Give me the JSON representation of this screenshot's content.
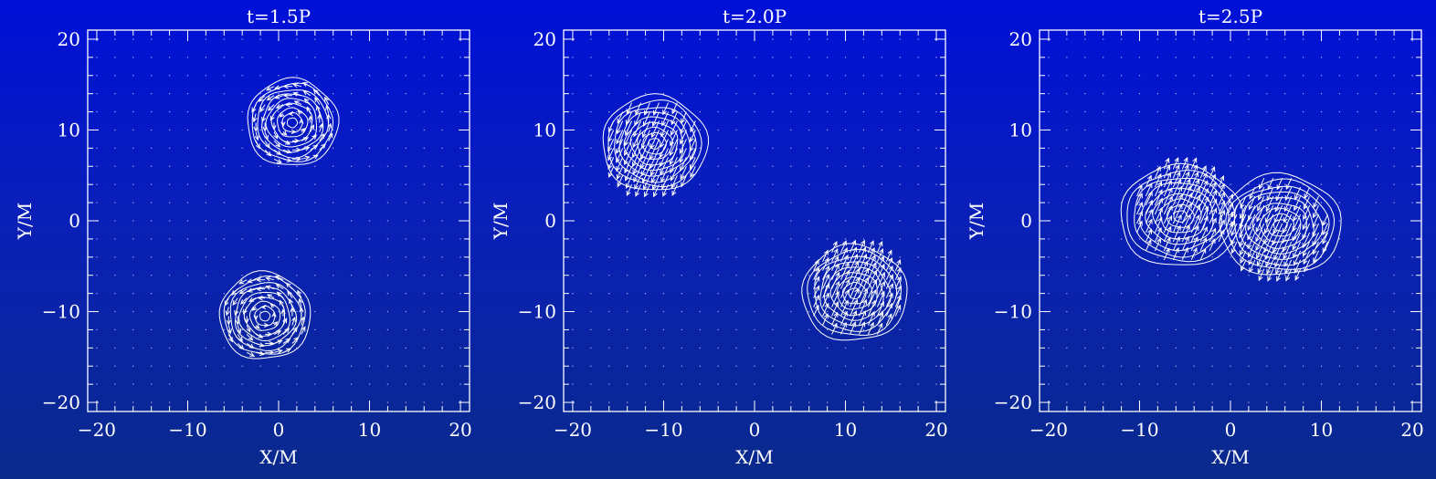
{
  "chart_data": [
    {
      "type": "contour",
      "title": "t=1.5P",
      "xlabel": "X/M",
      "ylabel": "Y/M",
      "xlim": [
        -21,
        21
      ],
      "ylim": [
        -21,
        21
      ],
      "xticks": [
        -20,
        -10,
        0,
        10,
        20
      ],
      "yticks": [
        -20,
        -10,
        0,
        10,
        20
      ],
      "grid": "dotted",
      "blobs": [
        {
          "center": [
            1.5,
            10.8
          ],
          "radius": 5.0,
          "flow": "vortex",
          "stretch": 1.0
        },
        {
          "center": [
            -1.5,
            -10.5
          ],
          "radius": 5.0,
          "flow": "vortex",
          "stretch": 1.0
        }
      ]
    },
    {
      "type": "contour",
      "title": "t=2.0P",
      "xlabel": "X/M",
      "ylabel": "Y/M",
      "xlim": [
        -21,
        21
      ],
      "ylim": [
        -21,
        21
      ],
      "xticks": [
        -20,
        -10,
        0,
        10,
        20
      ],
      "yticks": [
        -20,
        -10,
        0,
        10,
        20
      ],
      "grid": "dotted",
      "blobs": [
        {
          "center": [
            -11,
            8.5
          ],
          "radius": 5.5,
          "flow": "down-left",
          "stretch": 1.05
        },
        {
          "center": [
            11,
            -8
          ],
          "radius": 5.5,
          "flow": "up-right",
          "stretch": 1.05
        }
      ]
    },
    {
      "type": "contour",
      "title": "t=2.5P",
      "xlabel": "X/M",
      "ylabel": "Y/M",
      "xlim": [
        -21,
        21
      ],
      "ylim": [
        -21,
        21
      ],
      "xticks": [
        -20,
        -10,
        0,
        10,
        20
      ],
      "yticks": [
        -20,
        -10,
        0,
        10,
        20
      ],
      "grid": "dotted",
      "blobs": [
        {
          "center": [
            -5.5,
            0.5
          ],
          "radius": 5.8,
          "flow": "up-right",
          "stretch": 1.15
        },
        {
          "center": [
            5.5,
            -0.5
          ],
          "radius": 5.8,
          "flow": "down-left",
          "stretch": 1.15
        }
      ]
    }
  ]
}
